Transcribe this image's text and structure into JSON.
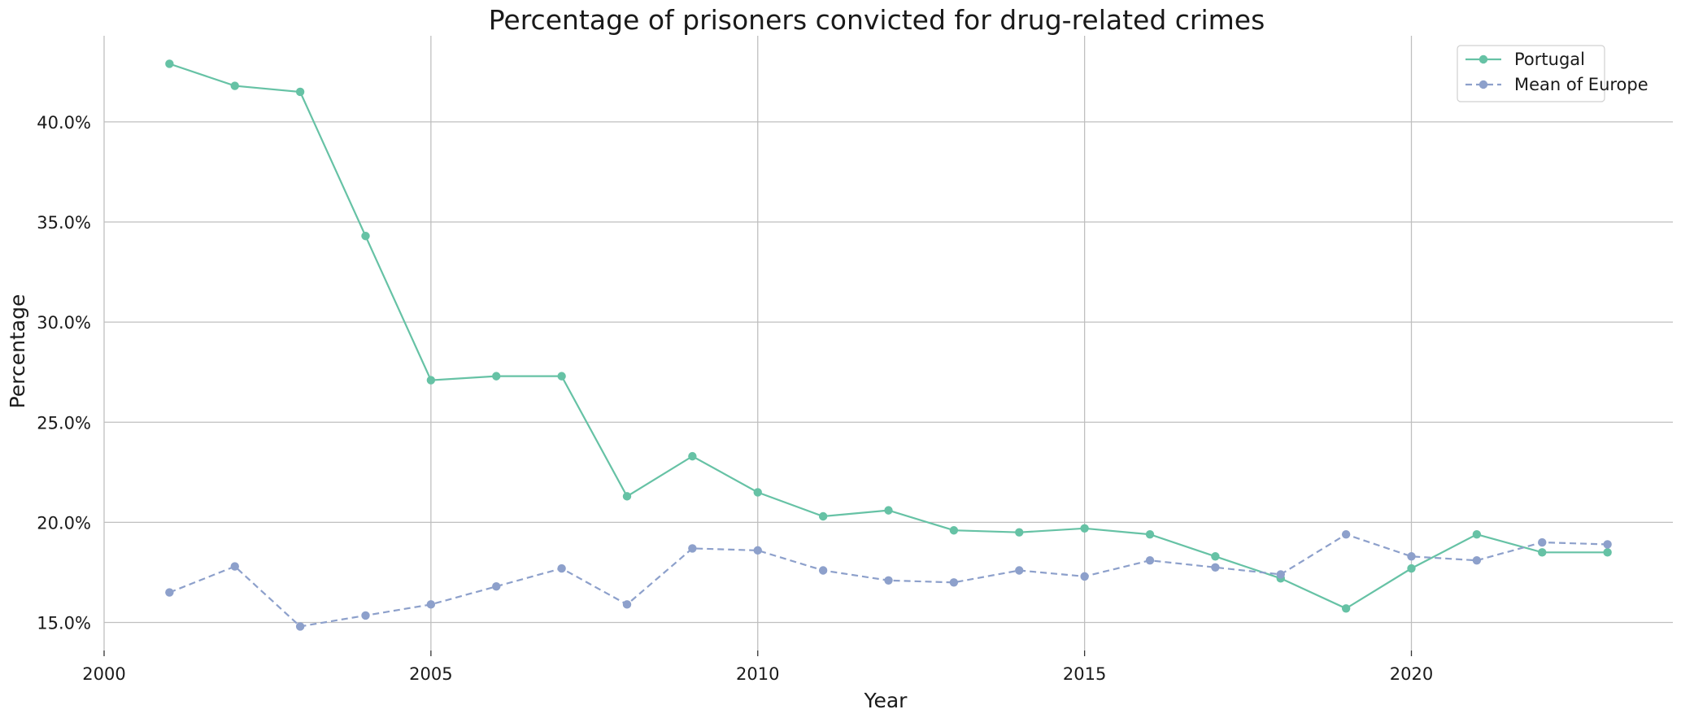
{
  "chart_data": {
    "type": "line",
    "title": "Percentage of prisoners convicted for drug-related crimes",
    "xlabel": "Year",
    "ylabel": "Percentage",
    "xlim": [
      2000,
      2024
    ],
    "ylim": [
      13.6,
      44.3
    ],
    "x_ticks": [
      2000,
      2005,
      2010,
      2015,
      2020
    ],
    "y_ticks": [
      15,
      20,
      25,
      30,
      35,
      40
    ],
    "y_tick_labels": [
      "15.0%",
      "20.0%",
      "25.0%",
      "30.0%",
      "35.0%",
      "40.0%"
    ],
    "grid": true,
    "legend_position": "top-right",
    "x": [
      2001,
      2002,
      2003,
      2004,
      2005,
      2006,
      2007,
      2008,
      2009,
      2010,
      2011,
      2012,
      2013,
      2014,
      2015,
      2016,
      2017,
      2018,
      2019,
      2020,
      2021,
      2022,
      2023
    ],
    "series": [
      {
        "name": "Portugal",
        "color": "#66c2a5",
        "line_style": "solid",
        "values": [
          42.9,
          41.8,
          41.5,
          34.3,
          27.1,
          27.3,
          27.3,
          21.3,
          23.3,
          21.5,
          20.3,
          20.6,
          19.6,
          19.5,
          19.7,
          19.4,
          18.3,
          17.2,
          15.7,
          17.7,
          19.4,
          18.5,
          18.5
        ]
      },
      {
        "name": "Mean of Europe",
        "color": "#8da0cb",
        "line_style": "dashed",
        "values": [
          16.5,
          17.8,
          14.8,
          15.35,
          15.9,
          16.8,
          17.7,
          15.9,
          18.7,
          18.6,
          17.6,
          17.1,
          17.0,
          17.6,
          17.3,
          18.1,
          17.75,
          17.4,
          19.4,
          18.3,
          18.1,
          19.0,
          18.9
        ]
      }
    ]
  }
}
